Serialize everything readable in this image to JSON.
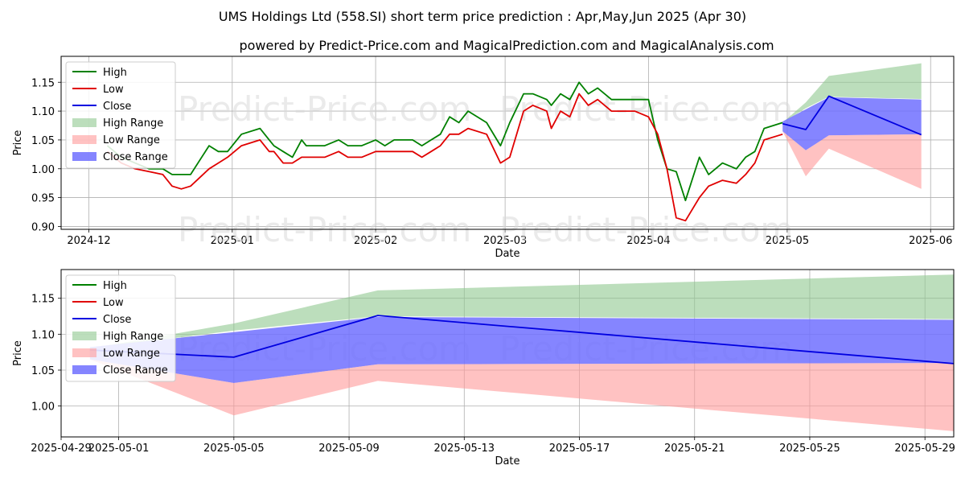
{
  "title": "UMS Holdings Ltd (558.SI) short term price prediction : Apr,May,Jun 2025 (Apr 30)",
  "subtitle": "powered by Predict-Price.com and MagicalPrediction.com and MagicalAnalysis.com",
  "watermark": "Predict-Price.com",
  "colors": {
    "high": "#008000",
    "low": "#e00000",
    "close": "#0000e0",
    "high_range": "#90c890",
    "low_range": "#ff9a9a",
    "close_range": "#7070ff"
  },
  "chart_data": [
    {
      "type": "line",
      "xlabel": "Date",
      "ylabel": "Price",
      "ylim": [
        0.895,
        1.195
      ],
      "xlim": [
        "2024-11-25",
        "2025-06-06"
      ],
      "x_ticks": [
        "2024-12",
        "2025-01",
        "2025-02",
        "2025-03",
        "2025-04",
        "2025-05",
        "2025-06"
      ],
      "y_ticks": [
        "0.90",
        "0.95",
        "1.00",
        "1.05",
        "1.10",
        "1.15"
      ],
      "grid": true,
      "legend": "top-left",
      "legend_entries": [
        "High",
        "Low",
        "Close",
        "High Range",
        "Low Range",
        "Close Range"
      ],
      "series": [
        {
          "name": "High",
          "x": [
            "2024-12-05",
            "2024-12-08",
            "2024-12-11",
            "2024-12-14",
            "2024-12-17",
            "2024-12-19",
            "2024-12-21",
            "2024-12-23",
            "2024-12-27",
            "2024-12-29",
            "2024-12-31",
            "2025-01-03",
            "2025-01-07",
            "2025-01-09",
            "2025-01-10",
            "2025-01-12",
            "2025-01-14",
            "2025-01-16",
            "2025-01-17",
            "2025-01-19",
            "2025-01-21",
            "2025-01-24",
            "2025-01-26",
            "2025-01-29",
            "2025-02-01",
            "2025-02-03",
            "2025-02-05",
            "2025-02-07",
            "2025-02-09",
            "2025-02-11",
            "2025-02-13",
            "2025-02-15",
            "2025-02-17",
            "2025-02-19",
            "2025-02-21",
            "2025-02-25",
            "2025-02-28",
            "2025-03-02",
            "2025-03-05",
            "2025-03-07",
            "2025-03-10",
            "2025-03-11",
            "2025-03-13",
            "2025-03-15",
            "2025-03-17",
            "2025-03-19",
            "2025-03-21",
            "2025-03-24",
            "2025-03-27",
            "2025-03-29",
            "2025-04-01",
            "2025-04-03",
            "2025-04-05",
            "2025-04-07",
            "2025-04-09",
            "2025-04-12",
            "2025-04-14",
            "2025-04-17",
            "2025-04-20",
            "2025-04-22",
            "2025-04-24",
            "2025-04-26",
            "2025-04-30"
          ],
          "values": [
            1.04,
            1.02,
            1.01,
            1.0,
            1.0,
            0.99,
            0.99,
            0.99,
            1.04,
            1.03,
            1.03,
            1.06,
            1.07,
            1.05,
            1.04,
            1.03,
            1.02,
            1.05,
            1.04,
            1.04,
            1.04,
            1.05,
            1.04,
            1.04,
            1.05,
            1.04,
            1.05,
            1.05,
            1.05,
            1.04,
            1.05,
            1.06,
            1.09,
            1.08,
            1.1,
            1.08,
            1.04,
            1.08,
            1.13,
            1.13,
            1.12,
            1.11,
            1.13,
            1.12,
            1.15,
            1.13,
            1.14,
            1.12,
            1.12,
            1.12,
            1.12,
            1.05,
            1.0,
            0.995,
            0.945,
            1.02,
            0.99,
            1.01,
            1.0,
            1.02,
            1.03,
            1.07,
            1.08
          ]
        },
        {
          "name": "Low",
          "x": [
            "2024-12-05",
            "2024-12-08",
            "2024-12-11",
            "2024-12-14",
            "2024-12-17",
            "2024-12-19",
            "2024-12-21",
            "2024-12-23",
            "2024-12-27",
            "2024-12-29",
            "2024-12-31",
            "2025-01-03",
            "2025-01-07",
            "2025-01-09",
            "2025-01-10",
            "2025-01-12",
            "2025-01-14",
            "2025-01-16",
            "2025-01-17",
            "2025-01-19",
            "2025-01-21",
            "2025-01-24",
            "2025-01-26",
            "2025-01-29",
            "2025-02-01",
            "2025-02-03",
            "2025-02-05",
            "2025-02-07",
            "2025-02-09",
            "2025-02-11",
            "2025-02-13",
            "2025-02-15",
            "2025-02-17",
            "2025-02-19",
            "2025-02-21",
            "2025-02-25",
            "2025-02-28",
            "2025-03-02",
            "2025-03-05",
            "2025-03-07",
            "2025-03-10",
            "2025-03-11",
            "2025-03-13",
            "2025-03-15",
            "2025-03-17",
            "2025-03-19",
            "2025-03-21",
            "2025-03-24",
            "2025-03-27",
            "2025-03-29",
            "2025-04-01",
            "2025-04-03",
            "2025-04-05",
            "2025-04-07",
            "2025-04-09",
            "2025-04-12",
            "2025-04-14",
            "2025-04-17",
            "2025-04-20",
            "2025-04-22",
            "2025-04-24",
            "2025-04-26",
            "2025-04-30"
          ],
          "values": [
            1.03,
            1.01,
            1.0,
            0.995,
            0.99,
            0.97,
            0.965,
            0.97,
            1.0,
            1.01,
            1.02,
            1.04,
            1.05,
            1.03,
            1.03,
            1.01,
            1.01,
            1.02,
            1.02,
            1.02,
            1.02,
            1.03,
            1.02,
            1.02,
            1.03,
            1.03,
            1.03,
            1.03,
            1.03,
            1.02,
            1.03,
            1.04,
            1.06,
            1.06,
            1.07,
            1.06,
            1.01,
            1.02,
            1.1,
            1.11,
            1.1,
            1.07,
            1.1,
            1.09,
            1.13,
            1.11,
            1.12,
            1.1,
            1.1,
            1.1,
            1.09,
            1.06,
            1.0,
            0.915,
            0.91,
            0.95,
            0.97,
            0.98,
            0.975,
            0.99,
            1.01,
            1.05,
            1.06
          ]
        },
        {
          "name": "Close",
          "x": [
            "2025-04-30",
            "2025-05-05",
            "2025-05-10",
            "2025-05-30"
          ],
          "values": [
            1.078,
            1.068,
            1.126,
            1.059
          ]
        }
      ],
      "ranges": [
        {
          "name": "High Range",
          "x": [
            "2025-04-30",
            "2025-05-05",
            "2025-05-10",
            "2025-05-30"
          ],
          "upper": [
            1.08,
            1.115,
            1.161,
            1.183
          ],
          "lower": [
            1.08,
            1.105,
            1.125,
            1.121
          ]
        },
        {
          "name": "Close Range",
          "x": [
            "2025-04-30",
            "2025-05-05",
            "2025-05-10",
            "2025-05-30"
          ],
          "upper": [
            1.082,
            1.103,
            1.124,
            1.12
          ],
          "lower": [
            1.065,
            1.032,
            1.058,
            1.06
          ]
        },
        {
          "name": "Low Range",
          "x": [
            "2025-04-30",
            "2025-05-05",
            "2025-05-10",
            "2025-05-30"
          ],
          "upper": [
            1.065,
            1.032,
            1.058,
            1.06
          ],
          "lower": [
            1.065,
            0.987,
            1.035,
            0.965
          ]
        }
      ]
    },
    {
      "type": "line",
      "xlabel": "Date",
      "ylabel": "Price",
      "ylim": [
        0.957,
        1.19
      ],
      "xlim": [
        "2025-04-29",
        "2025-05-30"
      ],
      "x_ticks": [
        "2025-04-29",
        "2025-05-01",
        "2025-05-05",
        "2025-05-09",
        "2025-05-13",
        "2025-05-17",
        "2025-05-21",
        "2025-05-25",
        "2025-05-29"
      ],
      "y_ticks": [
        "1.00",
        "1.05",
        "1.10",
        "1.15"
      ],
      "grid": true,
      "legend": "top-left",
      "legend_entries": [
        "High",
        "Low",
        "Close",
        "High Range",
        "Low Range",
        "Close Range"
      ],
      "series": [
        {
          "name": "Close",
          "x": [
            "2025-04-30",
            "2025-05-05",
            "2025-05-10",
            "2025-05-30"
          ],
          "values": [
            1.078,
            1.068,
            1.126,
            1.059
          ]
        }
      ],
      "ranges": [
        {
          "name": "High Range",
          "x": [
            "2025-04-30",
            "2025-05-05",
            "2025-05-10",
            "2025-05-30"
          ],
          "upper": [
            1.08,
            1.115,
            1.161,
            1.183
          ],
          "lower": [
            1.08,
            1.105,
            1.125,
            1.121
          ]
        },
        {
          "name": "Close Range",
          "x": [
            "2025-04-30",
            "2025-05-05",
            "2025-05-10",
            "2025-05-30"
          ],
          "upper": [
            1.082,
            1.103,
            1.124,
            1.12
          ],
          "lower": [
            1.065,
            1.032,
            1.058,
            1.06
          ]
        },
        {
          "name": "Low Range",
          "x": [
            "2025-04-30",
            "2025-05-05",
            "2025-05-10",
            "2025-05-30"
          ],
          "upper": [
            1.065,
            1.032,
            1.058,
            1.06
          ],
          "lower": [
            1.065,
            0.987,
            1.035,
            0.965
          ]
        }
      ]
    }
  ]
}
